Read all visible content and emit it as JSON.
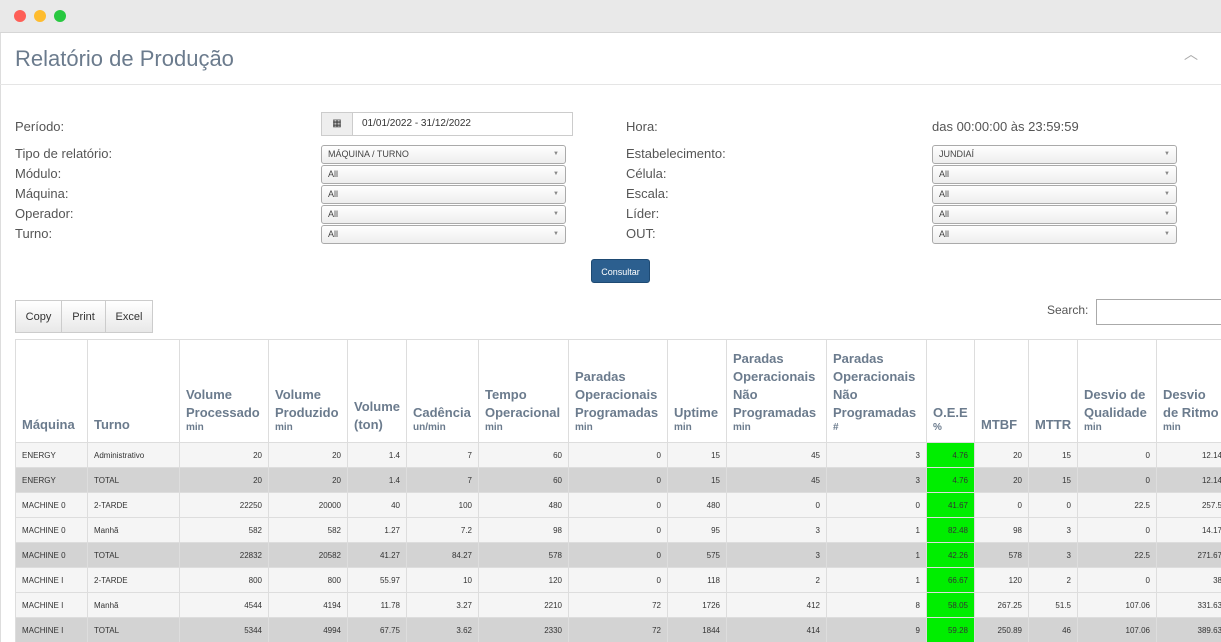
{
  "header": {
    "title": "Relatório de Produção"
  },
  "filters": {
    "left": [
      {
        "label": "Período:",
        "value": "01/01/2022 - 31/12/2022"
      },
      {
        "label": "Tipo de relatório:",
        "value": "MÁQUINA / TURNO"
      },
      {
        "label": "Módulo:",
        "value": "All"
      },
      {
        "label": "Máquina:",
        "value": "All"
      },
      {
        "label": "Operador:",
        "value": "All"
      },
      {
        "label": "Turno:",
        "value": "All"
      }
    ],
    "right": [
      {
        "label": "Hora:",
        "value": "das 00:00:00 às 23:59:59"
      },
      {
        "label": "Estabelecimento:",
        "value": "JUNDIAÍ"
      },
      {
        "label": "Célula:",
        "value": "All"
      },
      {
        "label": "Escala:",
        "value": "All"
      },
      {
        "label": "Líder:",
        "value": "All"
      },
      {
        "label": "OUT:",
        "value": "All"
      }
    ]
  },
  "submit": "Consultar",
  "toolbar": {
    "buttons": [
      "Copy",
      "Print",
      "Excel"
    ],
    "search_label": "Search:"
  },
  "table": {
    "columns": [
      {
        "name": "Máquina"
      },
      {
        "name": "Turno"
      },
      {
        "name": "Volume Processado",
        "unit": "min"
      },
      {
        "name": "Volume Produzido",
        "unit": "min"
      },
      {
        "name": "Volume (ton)"
      },
      {
        "name": "Cadência",
        "unit": "un/min"
      },
      {
        "name": "Tempo Operacional",
        "unit": "min"
      },
      {
        "name": "Paradas Operacionais Programadas",
        "unit": "min"
      },
      {
        "name": "Uptime",
        "unit": "min"
      },
      {
        "name": "Paradas Operacionais Não Programadas",
        "unit": "min"
      },
      {
        "name": "Paradas Operacionais Não Programadas",
        "unit": "#"
      },
      {
        "name": "O.E.E",
        "unit": "%"
      },
      {
        "name": "MTBF"
      },
      {
        "name": "MTTR"
      },
      {
        "name": "Desvio de Qualidade",
        "unit": "min"
      },
      {
        "name": "Desvio de Ritmo",
        "unit": "min"
      }
    ],
    "rows": [
      [
        "ENERGY",
        "Administrativo",
        20,
        20,
        1.4,
        7,
        60,
        0,
        15,
        45,
        3,
        4.76,
        20,
        15,
        0,
        12.14
      ],
      [
        "ENERGY",
        "TOTAL",
        20,
        20,
        1.4,
        7,
        60,
        0,
        15,
        45,
        3,
        4.76,
        20,
        15,
        0,
        12.14
      ],
      [
        "MACHINE 0",
        "2-TARDE",
        22250,
        20000,
        40,
        100,
        480,
        0,
        480,
        0,
        0,
        41.67,
        0,
        0,
        22.5,
        257.5
      ],
      [
        "MACHINE 0",
        "Manhã",
        582,
        582,
        1.27,
        7.2,
        98,
        0,
        95,
        3,
        1,
        82.48,
        98,
        3,
        0,
        14.17
      ],
      [
        "MACHINE 0",
        "TOTAL",
        22832,
        20582,
        41.27,
        84.27,
        578,
        0,
        575,
        3,
        1,
        42.26,
        578,
        3,
        22.5,
        271.67
      ],
      [
        "MACHINE I",
        "2-TARDE",
        800,
        800,
        55.97,
        10,
        120,
        0,
        118,
        2,
        1,
        66.67,
        120,
        2,
        0,
        38
      ],
      [
        "MACHINE I",
        "Manhã",
        4544,
        4194,
        11.78,
        3.27,
        2210,
        72,
        1726,
        412,
        8,
        58.05,
        267.25,
        51.5,
        107.06,
        331.63
      ],
      [
        "MACHINE I",
        "TOTAL",
        5344,
        4994,
        67.75,
        3.62,
        2330,
        72,
        1844,
        414,
        9,
        59.28,
        250.89,
        46,
        107.06,
        389.63
      ]
    ]
  }
}
